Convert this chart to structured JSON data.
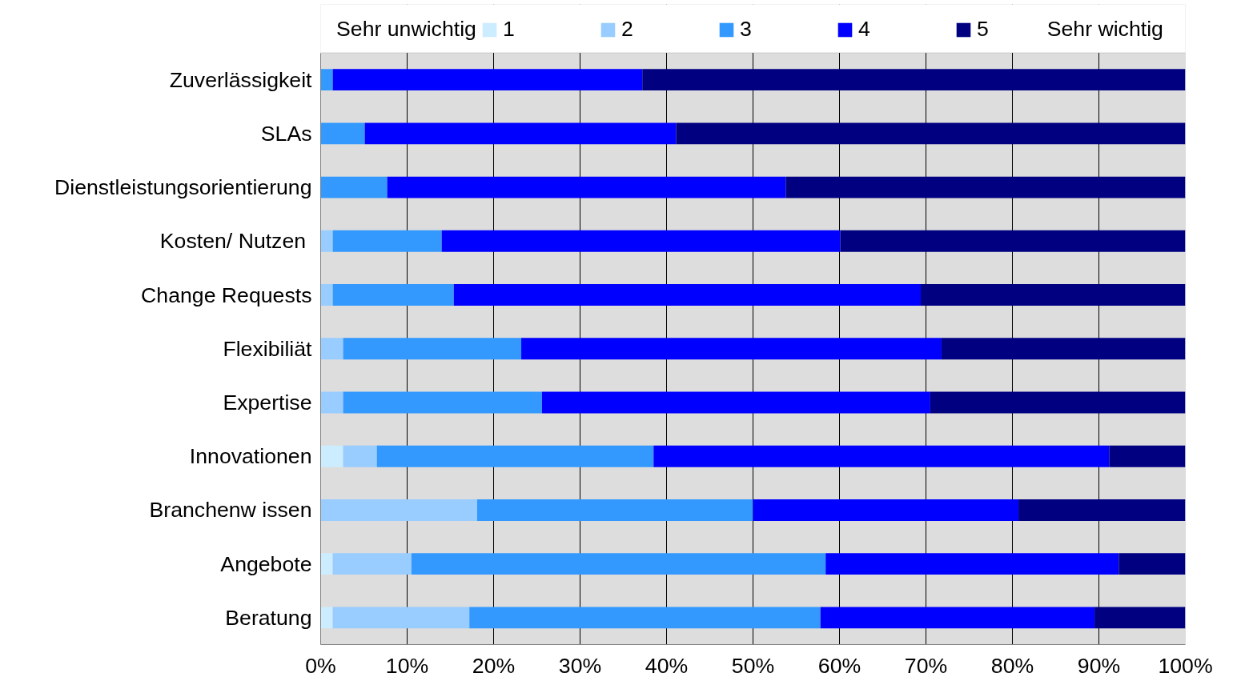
{
  "chart_data": {
    "type": "bar",
    "orientation": "horizontal",
    "stacked": true,
    "categories": [
      "Zuverlässigkeit",
      "SLAs",
      "Dienstleistungsorientierung",
      "Kosten/ Nutzen ",
      "Change Requests",
      "Flexibiliät",
      "Expertise",
      "Innovationen",
      "Branchenw issen",
      "Angebote",
      "Beratung"
    ],
    "series": [
      {
        "name": "1",
        "color": "#ccecff",
        "values": [
          0,
          0,
          0,
          0,
          0,
          0,
          0,
          2.6,
          0,
          1.4,
          1.4
        ]
      },
      {
        "name": "2",
        "color": "#99ccff",
        "values": [
          0,
          0,
          0,
          1.4,
          1.4,
          2.6,
          2.6,
          3.9,
          18.1,
          9.1,
          15.8
        ]
      },
      {
        "name": "3",
        "color": "#3399ff",
        "values": [
          1.4,
          5.1,
          7.7,
          12.6,
          14.0,
          20.6,
          23.0,
          32.0,
          31.9,
          47.9,
          40.6
        ]
      },
      {
        "name": "4",
        "color": "#0000ff",
        "values": [
          35.8,
          36.0,
          46.1,
          46.1,
          54.0,
          48.6,
          44.9,
          52.7,
          30.7,
          33.9,
          31.7
        ]
      },
      {
        "name": "5",
        "color": "#000080",
        "values": [
          62.8,
          58.9,
          46.2,
          39.9,
          30.6,
          28.2,
          29.5,
          8.8,
          19.3,
          7.7,
          10.5
        ]
      }
    ],
    "xlim": [
      0,
      100
    ],
    "xticks": [
      {
        "value": 0,
        "label": "0%"
      },
      {
        "value": 10,
        "label": "10%"
      },
      {
        "value": 20,
        "label": "20%"
      },
      {
        "value": 30,
        "label": "30%"
      },
      {
        "value": 40,
        "label": "40%"
      },
      {
        "value": 50,
        "label": "50%"
      },
      {
        "value": 60,
        "label": "60%"
      },
      {
        "value": 70,
        "label": "70%"
      },
      {
        "value": 80,
        "label": "80%"
      },
      {
        "value": 90,
        "label": "90%"
      },
      {
        "value": 100,
        "label": "100%"
      }
    ],
    "grid": "x",
    "legend": "top",
    "annotations": [
      "Sehr unwichtig",
      "Sehr wichtig"
    ]
  }
}
